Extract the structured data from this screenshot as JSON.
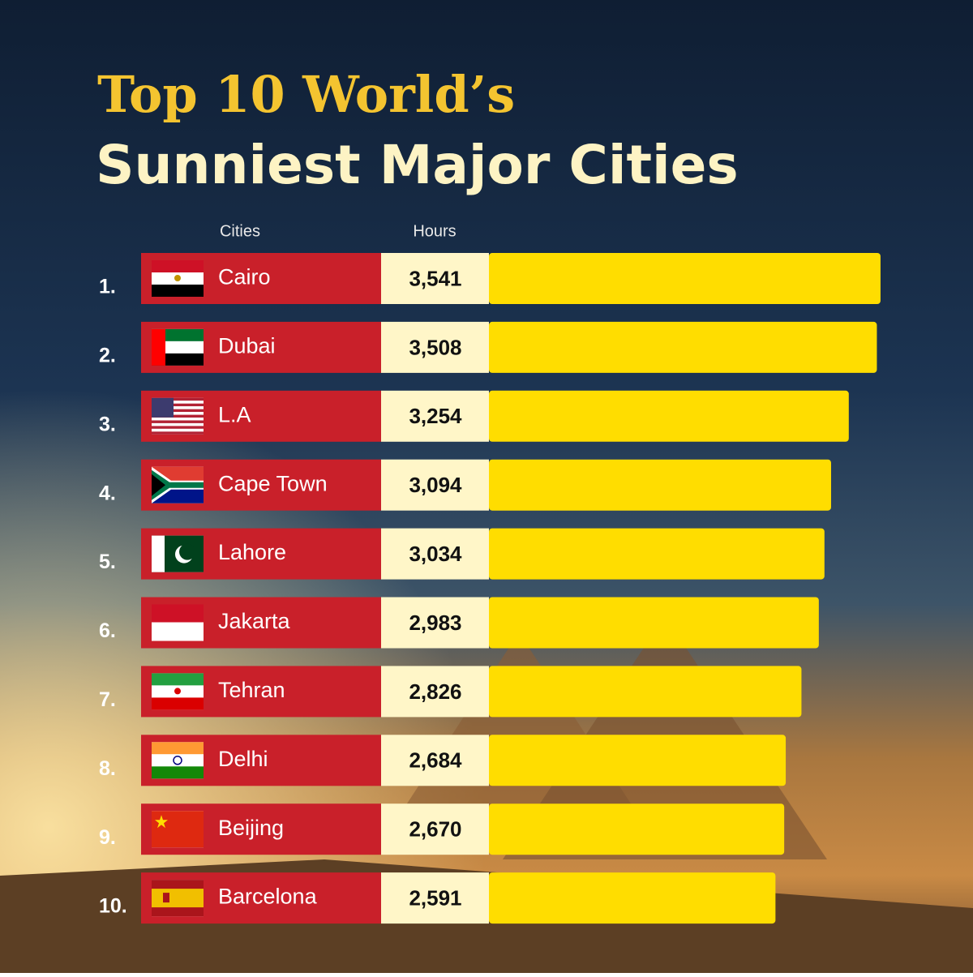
{
  "chart_data": {
    "type": "bar",
    "orientation": "horizontal",
    "title": "Top 10 World’s",
    "subtitle": "Sunniest Major Cities",
    "column_headers": [
      "Cities",
      "Hours"
    ],
    "ranks": [
      "1.",
      "2.",
      "3.",
      "4.",
      "5.",
      "6.",
      "7.",
      "8.",
      "9.",
      "10."
    ],
    "categories": [
      "Cairo",
      "Dubai",
      "L.A",
      "Cape Town",
      "Lahore",
      "Jakarta",
      "Tehran",
      "Delhi",
      "Beijing",
      "Barcelona"
    ],
    "values": [
      3541,
      3508,
      3254,
      3094,
      3034,
      2983,
      2826,
      2684,
      2670,
      2591
    ],
    "value_labels": [
      "3,541",
      "3,508",
      "3,254",
      "3,094",
      "3,034",
      "2,983",
      "2,826",
      "2,684",
      "2,670",
      "2,591"
    ],
    "xlim": [
      0,
      3600
    ],
    "color": "#ffdd00"
  }
}
